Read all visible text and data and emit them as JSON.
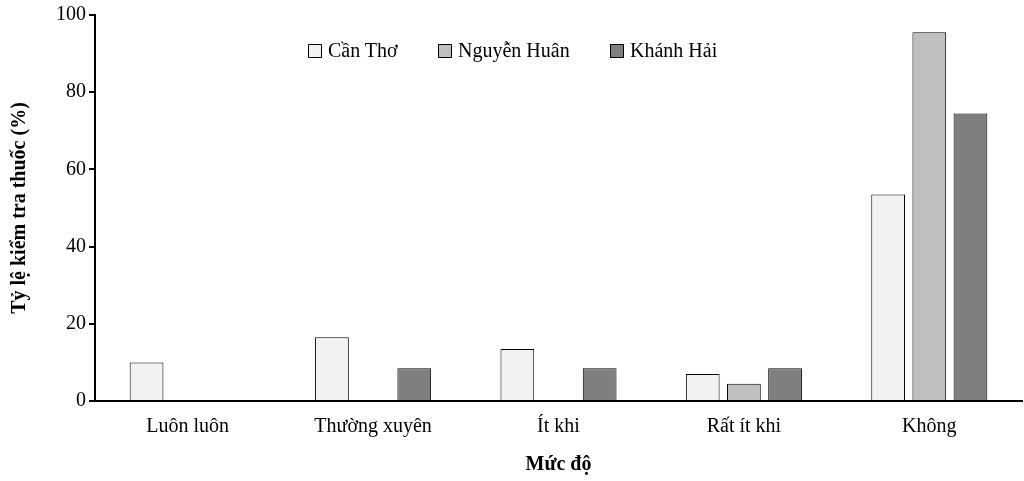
{
  "chart_data": {
    "type": "bar",
    "xlabel": "Mức độ",
    "ylabel": "Tỷ lệ kiểm tra thuốc (%)",
    "categories": [
      "Luôn luôn",
      "Thường xuyên",
      "Ít khi",
      "Rất ít khi",
      "Không"
    ],
    "series": [
      {
        "name": "Cần Thơ",
        "color": "#f2f2f2",
        "values": [
          10,
          16.5,
          13.5,
          7,
          53.5
        ]
      },
      {
        "name": "Nguyễn Huân",
        "color": "#bfbfbf",
        "values": [
          null,
          null,
          null,
          4.5,
          95.5
        ]
      },
      {
        "name": "Khánh Hải",
        "color": "#7f7f7f",
        "values": [
          null,
          8.5,
          8.5,
          8.5,
          74.5
        ]
      }
    ],
    "ylim": [
      0,
      100
    ],
    "yticks": [
      0,
      20,
      40,
      60,
      80,
      100
    ],
    "grid": false,
    "legend": "top"
  }
}
